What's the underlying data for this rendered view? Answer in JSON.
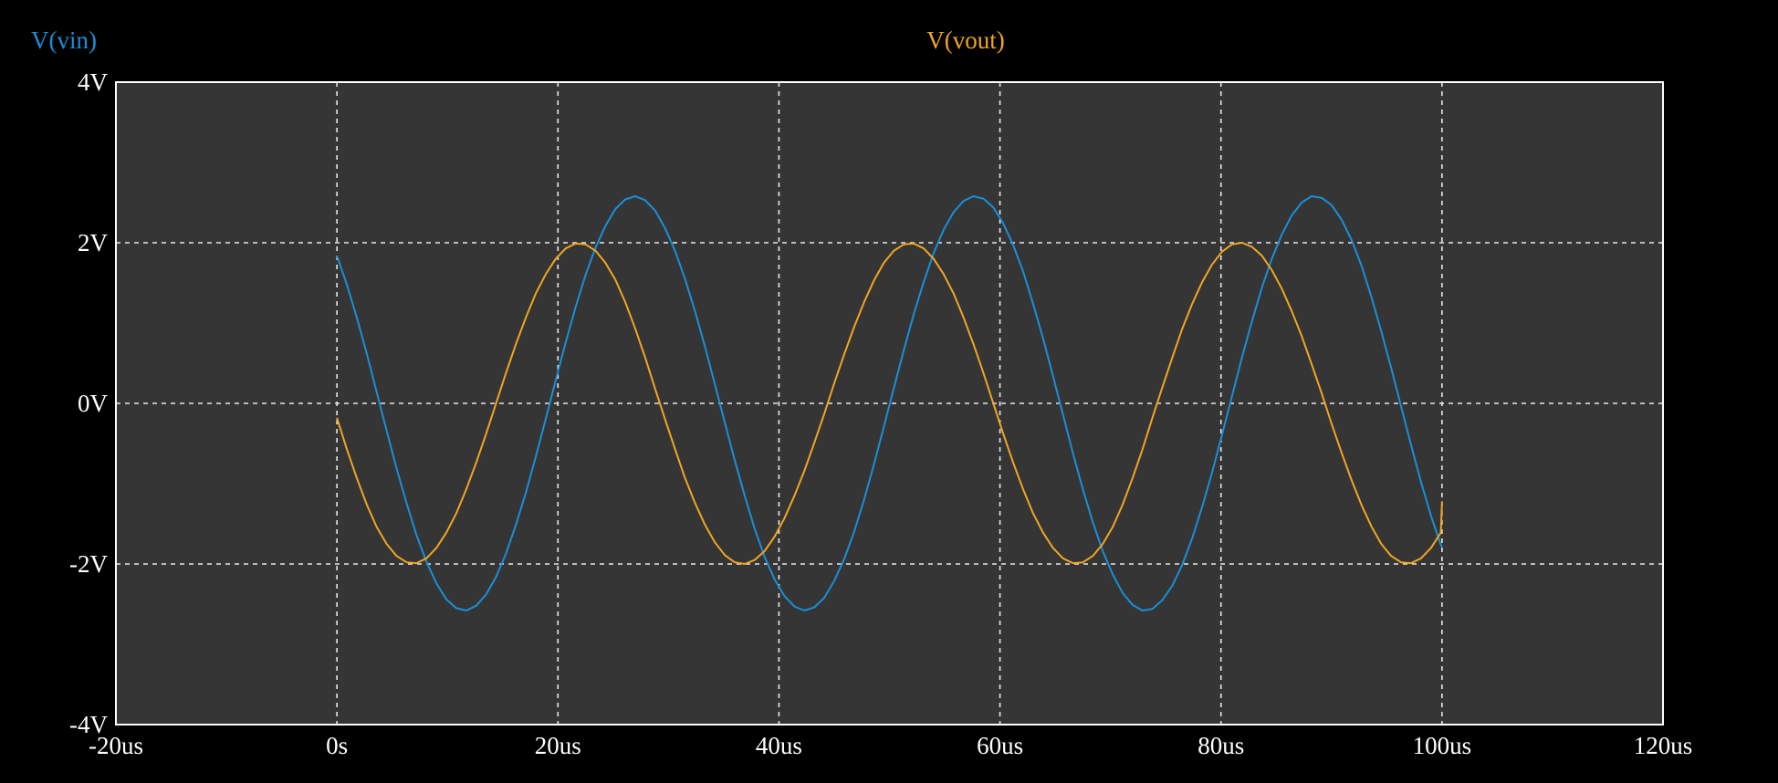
{
  "chart_data": {
    "type": "line",
    "xlim": [
      -20,
      120
    ],
    "ylim": [
      -4,
      4
    ],
    "x_ticks": [
      -20,
      0,
      20,
      40,
      60,
      80,
      100,
      120
    ],
    "x_tick_labels": [
      "-20us",
      "0s",
      "20us",
      "40us",
      "60us",
      "80us",
      "100us",
      "120us"
    ],
    "y_ticks": [
      4,
      2,
      0,
      -2,
      -4
    ],
    "y_tick_labels": [
      "4V",
      "2V",
      "0V",
      "-2V",
      "-4V"
    ],
    "grid": true,
    "colors": {
      "background": "#000000",
      "plot_area": "#353535",
      "frame": "#ffffff",
      "grid": "#e8e8e8"
    },
    "series": [
      {
        "name": "V(vin)",
        "color": "#1a8fd8",
        "x": [
          0,
          0.9,
          1.8,
          2.7,
          3.6,
          4.5,
          5.4,
          6.3,
          7.2,
          8.1,
          9.0,
          9.9,
          10.8,
          11.7,
          12.6,
          13.5,
          14.4,
          15.3,
          16.2,
          17.1,
          18.0,
          18.9,
          19.8,
          20.7,
          21.6,
          22.5,
          23.4,
          24.3,
          25.2,
          26.1,
          27.0,
          27.9,
          28.8,
          29.7,
          30.6,
          31.5,
          32.4,
          33.3,
          34.2,
          35.1,
          36.0,
          36.9,
          37.8,
          38.7,
          39.6,
          40.5,
          41.4,
          42.3,
          43.2,
          44.1,
          45.0,
          45.9,
          46.8,
          47.7,
          48.6,
          49.5,
          50.4,
          51.3,
          52.2,
          53.1,
          54.0,
          54.9,
          55.8,
          56.7,
          57.6,
          58.5,
          59.4,
          60.3,
          61.2,
          62.1,
          63.0,
          63.9,
          64.8,
          65.7,
          66.6,
          67.5,
          68.4,
          69.3,
          70.2,
          71.1,
          72.0,
          72.9,
          73.8,
          74.7,
          75.6,
          76.5,
          77.4,
          78.3,
          79.2,
          80.1,
          81.0,
          81.9,
          82.8,
          83.7,
          84.6,
          85.5,
          86.4,
          87.3,
          88.2,
          89.1,
          90.0,
          90.9,
          91.8,
          92.7,
          93.6,
          94.5,
          95.4,
          96.3,
          97.2,
          98.1,
          99.0,
          99.9,
          100.0
        ],
        "y": [
          1.84,
          1.48,
          1.07,
          0.62,
          0.14,
          -0.34,
          -0.81,
          -1.24,
          -1.64,
          -1.97,
          -2.24,
          -2.44,
          -2.55,
          -2.58,
          -2.52,
          -2.38,
          -2.16,
          -1.87,
          -1.51,
          -1.11,
          -0.66,
          -0.19,
          0.29,
          0.76,
          1.2,
          1.6,
          1.94,
          2.21,
          2.42,
          2.54,
          2.58,
          2.53,
          2.4,
          2.18,
          1.9,
          1.55,
          1.15,
          0.71,
          0.24,
          -0.24,
          -0.71,
          -1.15,
          -1.56,
          -1.91,
          -2.19,
          -2.4,
          -2.53,
          -2.58,
          -2.54,
          -2.42,
          -2.21,
          -1.94,
          -1.6,
          -1.2,
          -0.76,
          -0.29,
          0.19,
          0.66,
          1.11,
          1.51,
          1.87,
          2.16,
          2.38,
          2.52,
          2.58,
          2.55,
          2.44,
          2.24,
          1.97,
          1.64,
          1.24,
          0.81,
          0.34,
          -0.14,
          -0.62,
          -1.07,
          -1.48,
          -1.84,
          -2.13,
          -2.36,
          -2.51,
          -2.58,
          -2.56,
          -2.45,
          -2.27,
          -2.01,
          -1.68,
          -1.29,
          -0.86,
          -0.39,
          0.09,
          0.57,
          1.02,
          1.44,
          1.8,
          2.1,
          2.34,
          2.5,
          2.58,
          2.56,
          2.47,
          2.29,
          2.04,
          1.72,
          1.33,
          0.9,
          0.44,
          -0.04,
          -0.52,
          -0.98,
          -1.4,
          -1.76,
          -1.79
        ]
      },
      {
        "name": "V(vout)",
        "color": "#f0a623",
        "x": [
          0,
          0.9,
          1.8,
          2.7,
          3.6,
          4.5,
          5.4,
          6.3,
          7.2,
          8.1,
          9.0,
          9.9,
          10.8,
          11.7,
          12.6,
          13.5,
          14.4,
          15.3,
          16.2,
          17.1,
          18.0,
          18.9,
          19.8,
          20.7,
          21.6,
          22.5,
          23.4,
          24.3,
          25.2,
          26.1,
          27.0,
          27.9,
          28.8,
          29.7,
          30.6,
          31.5,
          32.4,
          33.3,
          34.2,
          35.1,
          36.0,
          36.9,
          37.8,
          38.7,
          39.6,
          40.5,
          41.4,
          42.3,
          43.2,
          44.1,
          45.0,
          45.9,
          46.8,
          47.7,
          48.6,
          49.5,
          50.4,
          51.3,
          52.2,
          53.1,
          54.0,
          54.9,
          55.8,
          56.7,
          57.6,
          58.5,
          59.4,
          60.3,
          61.2,
          62.1,
          63.0,
          63.9,
          64.8,
          65.7,
          66.6,
          67.5,
          68.4,
          69.3,
          70.2,
          71.1,
          72.0,
          72.9,
          73.8,
          74.7,
          75.6,
          76.5,
          77.4,
          78.3,
          79.2,
          80.1,
          81.0,
          81.9,
          82.8,
          83.7,
          84.6,
          85.5,
          86.4,
          87.3,
          88.2,
          89.1,
          90.0,
          90.9,
          91.8,
          92.7,
          93.6,
          94.5,
          95.4,
          96.3,
          97.2,
          98.1,
          99.0,
          99.9,
          100.0
        ],
        "y": [
          -0.18,
          -0.57,
          -0.93,
          -1.26,
          -1.54,
          -1.75,
          -1.9,
          -1.98,
          -1.99,
          -1.93,
          -1.8,
          -1.61,
          -1.37,
          -1.07,
          -0.74,
          -0.38,
          0.0,
          0.38,
          0.74,
          1.07,
          1.37,
          1.61,
          1.8,
          1.93,
          1.99,
          1.98,
          1.9,
          1.75,
          1.54,
          1.26,
          0.93,
          0.57,
          0.18,
          -0.2,
          -0.57,
          -0.93,
          -1.24,
          -1.51,
          -1.73,
          -1.89,
          -1.98,
          -2.0,
          -1.95,
          -1.84,
          -1.66,
          -1.43,
          -1.15,
          -0.84,
          -0.49,
          -0.13,
          0.25,
          0.61,
          0.95,
          1.26,
          1.53,
          1.75,
          1.9,
          1.98,
          1.99,
          1.93,
          1.8,
          1.61,
          1.37,
          1.07,
          0.74,
          0.38,
          0.0,
          -0.38,
          -0.74,
          -1.07,
          -1.37,
          -1.61,
          -1.8,
          -1.93,
          -1.99,
          -1.98,
          -1.9,
          -1.75,
          -1.54,
          -1.26,
          -0.93,
          -0.57,
          -0.18,
          0.2,
          0.57,
          0.93,
          1.24,
          1.51,
          1.73,
          1.89,
          1.98,
          2.0,
          1.95,
          1.84,
          1.66,
          1.43,
          1.15,
          0.84,
          0.49,
          0.13,
          -0.25,
          -0.61,
          -0.95,
          -1.26,
          -1.53,
          -1.75,
          -1.9,
          -1.98,
          -1.99,
          -1.93,
          -1.8,
          -1.61,
          -1.22
        ]
      }
    ]
  }
}
